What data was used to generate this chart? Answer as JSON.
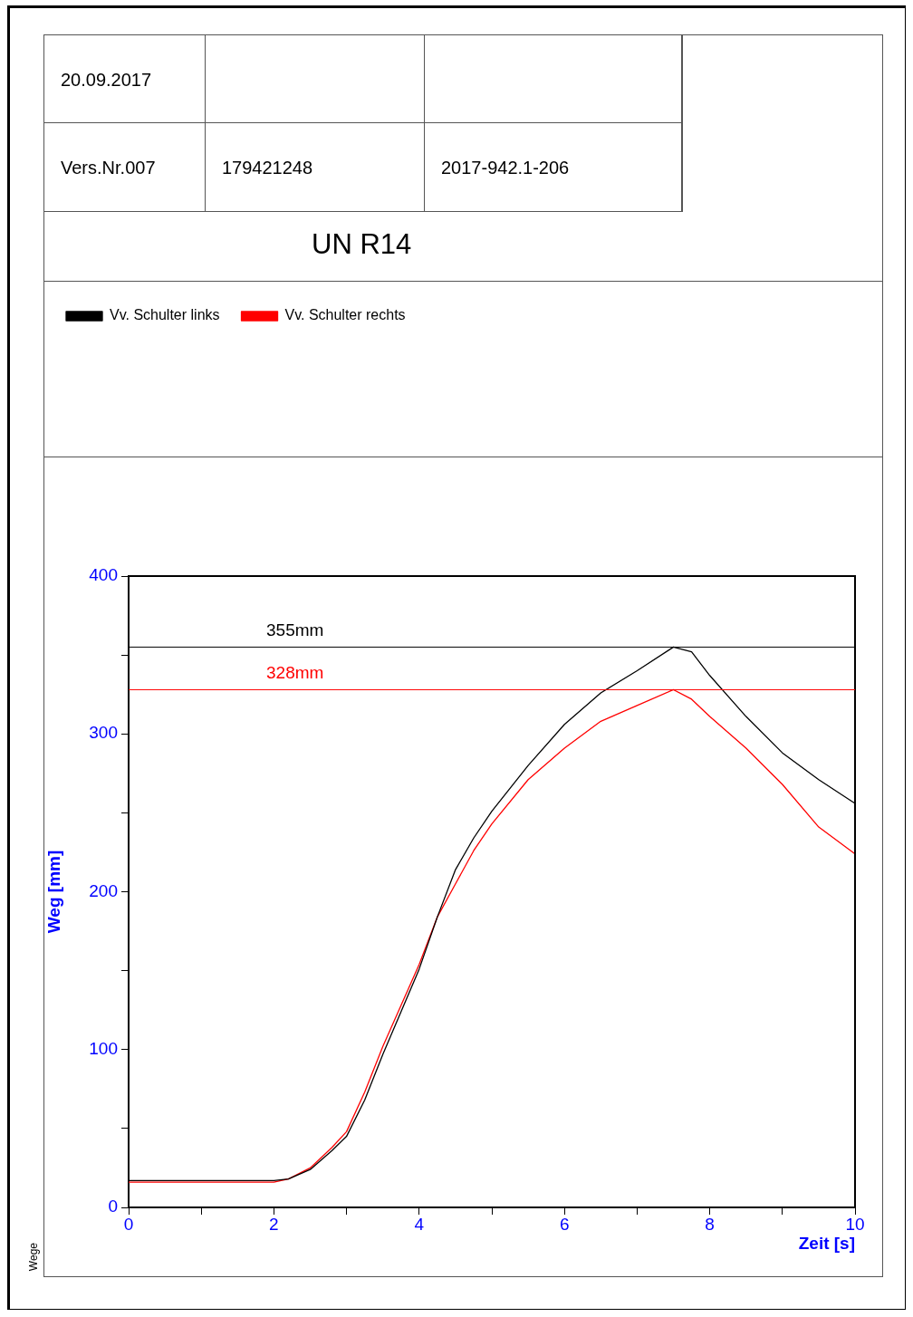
{
  "chart_data": {
    "type": "line",
    "title": "UN R14",
    "xlabel": "Zeit [s]",
    "ylabel": "Weg [mm]",
    "annotations": [
      "20.09.2017",
      "Vers.Nr.007",
      "179421248",
      "2017-942.1-206",
      "Wege"
    ],
    "xlim": [
      0,
      10
    ],
    "xticks": [
      0,
      {
        "value": 1,
        "label": null
      },
      2,
      {
        "value": 3,
        "label": null
      },
      4,
      {
        "value": 5,
        "label": null
      },
      6,
      {
        "value": 7,
        "label": null
      },
      8,
      {
        "value": 9,
        "label": null
      },
      10
    ],
    "ylim": [
      0,
      400
    ],
    "yticks": [
      0,
      {
        "value": 50,
        "label": null
      },
      100,
      {
        "value": 150,
        "label": null
      },
      200,
      {
        "value": 250,
        "label": null
      },
      300,
      {
        "value": 350,
        "label": null
      },
      400
    ],
    "grid": false,
    "legend": "top left",
    "marker": "none",
    "line_style": "solid",
    "ref_lines": [
      {
        "axis": "y",
        "value": 355,
        "label": "355mm",
        "color": "#000000"
      },
      {
        "axis": "y",
        "value": 328,
        "label": "328mm",
        "color": "#ff0000"
      }
    ],
    "series": [
      {
        "name": "Vv. Schulter links",
        "color": "#000000",
        "x": [
          0,
          1,
          2,
          2.2,
          2.5,
          2.8,
          3,
          3.25,
          3.5,
          3.75,
          4,
          4.25,
          4.5,
          4.75,
          5,
          5.5,
          6,
          6.5,
          7,
          7.5,
          7.75,
          8,
          8.5,
          9,
          9.5,
          10
        ],
        "values": [
          17,
          17,
          17,
          18,
          24,
          36,
          45,
          68,
          97,
          124,
          151,
          184,
          214,
          234,
          251,
          280,
          306,
          326,
          340,
          355,
          352,
          337,
          311,
          288,
          271,
          256
        ]
      },
      {
        "name": "Vv. Schulter rechts",
        "color": "#ff0000",
        "x": [
          0,
          1,
          2,
          2.2,
          2.5,
          2.8,
          3,
          3.25,
          3.5,
          3.75,
          4,
          4.25,
          4.5,
          4.75,
          5,
          5.5,
          6,
          6.5,
          7,
          7.5,
          7.75,
          8,
          8.5,
          9,
          9.5,
          10
        ],
        "values": [
          16,
          16,
          16,
          18,
          25,
          38,
          48,
          73,
          102,
          128,
          154,
          184,
          205,
          226,
          243,
          271,
          291,
          308,
          318,
          328,
          322,
          311,
          291,
          268,
          241,
          224
        ]
      }
    ]
  }
}
